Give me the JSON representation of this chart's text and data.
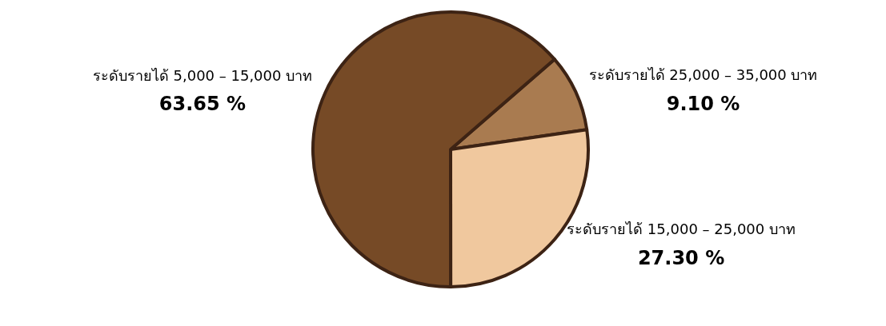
{
  "chart_data": {
    "type": "pie",
    "categories": [
      "ระดับรายได้ 25,000 – 35,000 บาท",
      "ระดับรายได้ 15,000 – 25,000 บาท",
      "ระดับรายได้ 5,000 – 15,000 บาท"
    ],
    "values": [
      9.1,
      27.3,
      63.65
    ],
    "value_labels": [
      "9.10 %",
      "27.30 %",
      "63.65 %"
    ],
    "colors": [
      "#a97b50",
      "#f0c89e",
      "#764a26"
    ],
    "legend": false
  }
}
